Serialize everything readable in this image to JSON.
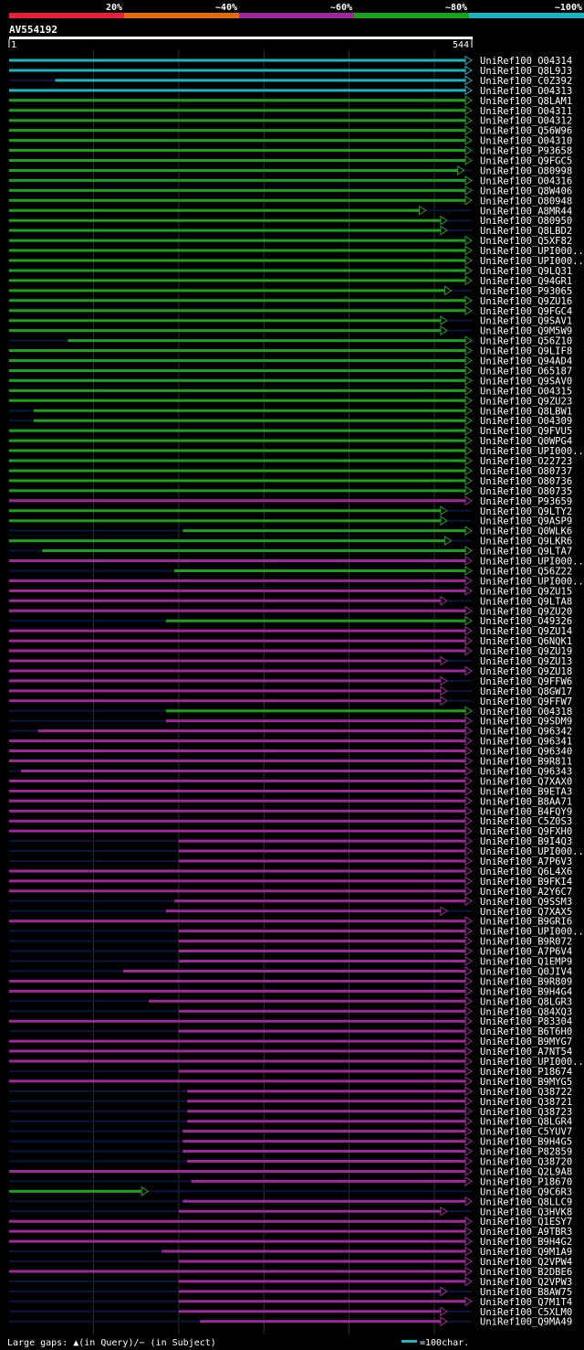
{
  "chart_data": {
    "type": "blast-alignment-overview",
    "query": {
      "name": "AV554192",
      "start": 1,
      "end": 544
    },
    "color_key": [
      {
        "label": "20%",
        "color": "#e8203c"
      },
      {
        "label": "~40%",
        "color": "#e36c0a"
      },
      {
        "label": "~60%",
        "color": "#a0289c"
      },
      {
        "label": "~80%",
        "color": "#1aa31a"
      },
      {
        "label": "~100%",
        "color": "#19b6c2"
      }
    ],
    "class_colors": {
      "c": "#19b6c2",
      "g": "#1aa31a",
      "m": "#a0289c",
      "o": "#e36c0a"
    },
    "hits": [
      {
        "name": "UniRef100_O04314",
        "s": 1,
        "e": 544,
        "c": "c"
      },
      {
        "name": "UniRef100_Q8L9J3",
        "s": 1,
        "e": 544,
        "c": "c"
      },
      {
        "name": "UniRef100_C0Z392",
        "s": 55,
        "e": 544,
        "c": "c"
      },
      {
        "name": "UniRef100_O04313",
        "s": 1,
        "e": 544,
        "c": "c"
      },
      {
        "name": "UniRef100_Q8LAM1",
        "s": 1,
        "e": 544,
        "c": "g"
      },
      {
        "name": "UniRef100_O04311",
        "s": 1,
        "e": 544,
        "c": "g"
      },
      {
        "name": "UniRef100_O04312",
        "s": 1,
        "e": 544,
        "c": "g"
      },
      {
        "name": "UniRef100_Q56W96",
        "s": 1,
        "e": 544,
        "c": "g"
      },
      {
        "name": "UniRef100_O04310",
        "s": 1,
        "e": 544,
        "c": "g"
      },
      {
        "name": "UniRef100_P93658",
        "s": 1,
        "e": 544,
        "c": "g"
      },
      {
        "name": "UniRef100_Q9FGC5",
        "s": 1,
        "e": 544,
        "c": "g"
      },
      {
        "name": "UniRef100_O80998",
        "s": 1,
        "e": 535,
        "c": "g"
      },
      {
        "name": "UniRef100_O04316",
        "s": 1,
        "e": 544,
        "c": "g"
      },
      {
        "name": "UniRef100_Q8W406",
        "s": 1,
        "e": 544,
        "c": "g"
      },
      {
        "name": "UniRef100_O80948",
        "s": 1,
        "e": 544,
        "c": "g"
      },
      {
        "name": "UniRef100_A8MR44",
        "s": 1,
        "e": 490,
        "c": "g"
      },
      {
        "name": "UniRef100_O80950",
        "s": 1,
        "e": 515,
        "c": "g"
      },
      {
        "name": "UniRef100_Q8LBD2",
        "s": 1,
        "e": 515,
        "c": "g"
      },
      {
        "name": "UniRef100_Q5XF82",
        "s": 1,
        "e": 544,
        "c": "g"
      },
      {
        "name": "UniRef100_UPI000..",
        "s": 1,
        "e": 544,
        "c": "g"
      },
      {
        "name": "UniRef100_UPI000..",
        "s": 1,
        "e": 544,
        "c": "g"
      },
      {
        "name": "UniRef100_Q9LQ31",
        "s": 1,
        "e": 544,
        "c": "g"
      },
      {
        "name": "UniRef100_Q94GR1",
        "s": 1,
        "e": 544,
        "c": "g"
      },
      {
        "name": "UniRef100_P93065",
        "s": 1,
        "e": 520,
        "c": "g"
      },
      {
        "name": "UniRef100_Q9ZU16",
        "s": 1,
        "e": 544,
        "c": "g"
      },
      {
        "name": "UniRef100_Q9FGC4",
        "s": 1,
        "e": 544,
        "c": "g"
      },
      {
        "name": "UniRef100_Q9SAV1",
        "s": 1,
        "e": 515,
        "c": "g"
      },
      {
        "name": "UniRef100_Q9M5W9",
        "s": 1,
        "e": 515,
        "c": "g"
      },
      {
        "name": "UniRef100_Q56Z10",
        "s": 70,
        "e": 544,
        "c": "g"
      },
      {
        "name": "UniRef100_Q9LIF8",
        "s": 1,
        "e": 544,
        "c": "g"
      },
      {
        "name": "UniRef100_Q94AD4",
        "s": 1,
        "e": 544,
        "c": "g"
      },
      {
        "name": "UniRef100_O65187",
        "s": 1,
        "e": 544,
        "c": "g"
      },
      {
        "name": "UniRef100_Q9SAV0",
        "s": 1,
        "e": 544,
        "c": "g"
      },
      {
        "name": "UniRef100_O04315",
        "s": 1,
        "e": 544,
        "c": "g"
      },
      {
        "name": "UniRef100_Q9ZU23",
        "s": 1,
        "e": 544,
        "c": "g"
      },
      {
        "name": "UniRef100_Q8LBW1",
        "s": 30,
        "e": 544,
        "c": "g"
      },
      {
        "name": "UniRef100_O04309",
        "s": 30,
        "e": 544,
        "c": "g"
      },
      {
        "name": "UniRef100_Q9FVU5",
        "s": 1,
        "e": 544,
        "c": "g"
      },
      {
        "name": "UniRef100_Q0WPG4",
        "s": 1,
        "e": 544,
        "c": "g"
      },
      {
        "name": "UniRef100_UPI000..",
        "s": 1,
        "e": 544,
        "c": "g"
      },
      {
        "name": "UniRef100_O22723",
        "s": 1,
        "e": 544,
        "c": "g"
      },
      {
        "name": "UniRef100_O80737",
        "s": 1,
        "e": 544,
        "c": "g"
      },
      {
        "name": "UniRef100_O80736",
        "s": 1,
        "e": 544,
        "c": "g"
      },
      {
        "name": "UniRef100_O80735",
        "s": 1,
        "e": 544,
        "c": "g"
      },
      {
        "name": "UniRef100_P93659",
        "s": 1,
        "e": 544,
        "c": "m"
      },
      {
        "name": "UniRef100_Q9LTY2",
        "s": 1,
        "e": 515,
        "c": "g"
      },
      {
        "name": "UniRef100_Q9ASP9",
        "s": 1,
        "e": 515,
        "c": "g"
      },
      {
        "name": "UniRef100_Q0WLK6",
        "s": 205,
        "e": 544,
        "c": "g"
      },
      {
        "name": "UniRef100_Q9LKR6",
        "s": 1,
        "e": 520,
        "c": "g"
      },
      {
        "name": "UniRef100_Q9LTA7",
        "s": 40,
        "e": 544,
        "c": "g"
      },
      {
        "name": "UniRef100_UPI000..",
        "s": 1,
        "e": 544,
        "c": "m"
      },
      {
        "name": "UniRef100_Q56Z22",
        "s": 195,
        "e": 544,
        "c": "g"
      },
      {
        "name": "UniRef100_UPI000..",
        "s": 1,
        "e": 544,
        "c": "m"
      },
      {
        "name": "UniRef100_Q9ZU15",
        "s": 1,
        "e": 544,
        "c": "m"
      },
      {
        "name": "UniRef100_Q9LTA8",
        "s": 1,
        "e": 515,
        "c": "m"
      },
      {
        "name": "UniRef100_Q9ZU20",
        "s": 1,
        "e": 544,
        "c": "m"
      },
      {
        "name": "UniRef100_O49326",
        "s": 185,
        "e": 544,
        "c": "g"
      },
      {
        "name": "UniRef100_Q9ZU14",
        "s": 1,
        "e": 544,
        "c": "m"
      },
      {
        "name": "UniRef100_Q6NQK1",
        "s": 1,
        "e": 544,
        "c": "m"
      },
      {
        "name": "UniRef100_Q9ZU19",
        "s": 1,
        "e": 544,
        "c": "m"
      },
      {
        "name": "UniRef100_Q9ZU13",
        "s": 1,
        "e": 515,
        "c": "m"
      },
      {
        "name": "UniRef100_Q9ZU18",
        "s": 1,
        "e": 544,
        "c": "m"
      },
      {
        "name": "UniRef100_Q9FFW6",
        "s": 1,
        "e": 515,
        "c": "m"
      },
      {
        "name": "UniRef100_Q8GW17",
        "s": 1,
        "e": 515,
        "c": "m"
      },
      {
        "name": "UniRef100_Q9FFW7",
        "s": 1,
        "e": 515,
        "c": "m"
      },
      {
        "name": "UniRef100_O04318",
        "s": 185,
        "e": 544,
        "c": "g"
      },
      {
        "name": "UniRef100_Q9SDM9",
        "s": 185,
        "e": 544,
        "c": "m"
      },
      {
        "name": "UniRef100_Q96342",
        "s": 35,
        "e": 544,
        "c": "m"
      },
      {
        "name": "UniRef100_Q96341",
        "s": 1,
        "e": 544,
        "c": "m"
      },
      {
        "name": "UniRef100_Q96340",
        "s": 1,
        "e": 544,
        "c": "m"
      },
      {
        "name": "UniRef100_B9R811",
        "s": 1,
        "e": 544,
        "c": "m"
      },
      {
        "name": "UniRef100_Q96343",
        "s": 15,
        "e": 544,
        "c": "m"
      },
      {
        "name": "UniRef100_Q7XAX0",
        "s": 1,
        "e": 544,
        "c": "m"
      },
      {
        "name": "UniRef100_B9ETA3",
        "s": 1,
        "e": 544,
        "c": "m"
      },
      {
        "name": "UniRef100_B8AA71",
        "s": 1,
        "e": 544,
        "c": "m"
      },
      {
        "name": "UniRef100_B4FQY9",
        "s": 1,
        "e": 544,
        "c": "m"
      },
      {
        "name": "UniRef100_C5Z0S3",
        "s": 1,
        "e": 544,
        "c": "m"
      },
      {
        "name": "UniRef100_Q9FXH0",
        "s": 1,
        "e": 544,
        "c": "m"
      },
      {
        "name": "UniRef100_B9I4Q3",
        "s": 200,
        "e": 544,
        "c": "m"
      },
      {
        "name": "UniRef100_UPI000..",
        "s": 200,
        "e": 544,
        "c": "m"
      },
      {
        "name": "UniRef100_A7P6V3",
        "s": 200,
        "e": 544,
        "c": "m"
      },
      {
        "name": "UniRef100_Q6L4X6",
        "s": 1,
        "e": 544,
        "c": "m"
      },
      {
        "name": "UniRef100_B9FKI4",
        "s": 1,
        "e": 544,
        "c": "m"
      },
      {
        "name": "UniRef100_A2Y6C7",
        "s": 1,
        "e": 544,
        "c": "m"
      },
      {
        "name": "UniRef100_Q9SSM3",
        "s": 195,
        "e": 544,
        "c": "m"
      },
      {
        "name": "UniRef100_Q7XAX5",
        "s": 185,
        "e": 515,
        "c": "m"
      },
      {
        "name": "UniRef100_B9GRI6",
        "s": 1,
        "e": 544,
        "c": "m"
      },
      {
        "name": "UniRef100_UPI000..",
        "s": 200,
        "e": 544,
        "c": "m"
      },
      {
        "name": "UniRef100_B9R072",
        "s": 200,
        "e": 544,
        "c": "m"
      },
      {
        "name": "UniRef100_A7P6V4",
        "s": 200,
        "e": 544,
        "c": "m"
      },
      {
        "name": "UniRef100_Q1EMP9",
        "s": 200,
        "e": 544,
        "c": "m"
      },
      {
        "name": "UniRef100_Q0JIV4",
        "s": 135,
        "e": 544,
        "c": "m"
      },
      {
        "name": "UniRef100_B9R809",
        "s": 1,
        "e": 544,
        "c": "m"
      },
      {
        "name": "UniRef100_B9H4G4",
        "s": 1,
        "e": 544,
        "c": "m"
      },
      {
        "name": "UniRef100_Q8LGR3",
        "s": 165,
        "e": 544,
        "c": "m"
      },
      {
        "name": "UniRef100_Q84XQ3",
        "s": 200,
        "e": 544,
        "c": "m"
      },
      {
        "name": "UniRef100_P83304",
        "s": 1,
        "e": 544,
        "c": "m"
      },
      {
        "name": "UniRef100_B6T6H0",
        "s": 200,
        "e": 544,
        "c": "m"
      },
      {
        "name": "UniRef100_B9MYG7",
        "s": 1,
        "e": 544,
        "c": "m"
      },
      {
        "name": "UniRef100_A7NT54",
        "s": 1,
        "e": 544,
        "c": "m"
      },
      {
        "name": "UniRef100_UPI000..",
        "s": 1,
        "e": 544,
        "c": "m"
      },
      {
        "name": "UniRef100_P18674",
        "s": 200,
        "e": 544,
        "c": "m"
      },
      {
        "name": "UniRef100_B9MYG5",
        "s": 1,
        "e": 544,
        "c": "m"
      },
      {
        "name": "UniRef100_Q38722",
        "s": 210,
        "e": 544,
        "c": "m"
      },
      {
        "name": "UniRef100_Q38721",
        "s": 210,
        "e": 544,
        "c": "m"
      },
      {
        "name": "UniRef100_Q38723",
        "s": 210,
        "e": 544,
        "c": "m"
      },
      {
        "name": "UniRef100_Q8LGR4",
        "s": 210,
        "e": 544,
        "c": "m"
      },
      {
        "name": "UniRef100_C5YUV7",
        "s": 205,
        "e": 544,
        "c": "m"
      },
      {
        "name": "UniRef100_B9H4G5",
        "s": 205,
        "e": 544,
        "c": "m"
      },
      {
        "name": "UniRef100_P82859",
        "s": 205,
        "e": 544,
        "c": "m"
      },
      {
        "name": "UniRef100_Q38720",
        "s": 210,
        "e": 544,
        "c": "m"
      },
      {
        "name": "UniRef100_Q2L9A8",
        "s": 1,
        "e": 544,
        "c": "m"
      },
      {
        "name": "UniRef100_P18670",
        "s": 215,
        "e": 544,
        "c": "m"
      },
      {
        "name": "UniRef100_Q9C6R3",
        "s": 1,
        "e": 164,
        "c": "g"
      },
      {
        "name": "UniRef100_Q8LLC9",
        "s": 205,
        "e": 544,
        "c": "m"
      },
      {
        "name": "UniRef100_Q3HVK8",
        "s": 200,
        "e": 515,
        "c": "m"
      },
      {
        "name": "UniRef100_Q1ESY7",
        "s": 1,
        "e": 544,
        "c": "m"
      },
      {
        "name": "UniRef100_A9TBR3",
        "s": 1,
        "e": 544,
        "c": "m"
      },
      {
        "name": "UniRef100_B9H4G2",
        "s": 1,
        "e": 544,
        "c": "m"
      },
      {
        "name": "UniRef100_Q9M1A9",
        "s": 180,
        "e": 544,
        "c": "m"
      },
      {
        "name": "UniRef100_Q2VPW4",
        "s": 200,
        "e": 544,
        "c": "m"
      },
      {
        "name": "UniRef100_B2DBE6",
        "s": 1,
        "e": 544,
        "c": "m"
      },
      {
        "name": "UniRef100_Q2VPW3",
        "s": 200,
        "e": 544,
        "c": "m"
      },
      {
        "name": "UniRef100_B8AW75",
        "s": 200,
        "e": 515,
        "c": "m"
      },
      {
        "name": "UniRef100_Q7M1T4",
        "s": 200,
        "e": 544,
        "c": "m"
      },
      {
        "name": "UniRef100_C5XLM0",
        "s": 200,
        "e": 515,
        "c": "m"
      },
      {
        "name": "UniRef100_Q9MA49",
        "s": 225,
        "e": 515,
        "c": "m"
      }
    ],
    "footer": {
      "gaps_text": "Large gaps: ▲(in Query)/− (in Subject)",
      "scale_text": "=100char."
    }
  }
}
